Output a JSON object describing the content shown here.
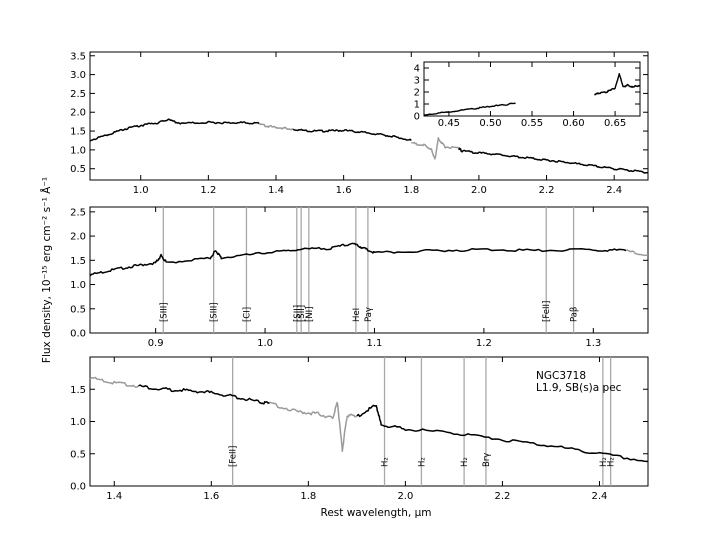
{
  "figure": {
    "ylabel": "Flux density, 10⁻¹⁵ erg cm⁻² s⁻¹ Å⁻¹",
    "xlabel": "Rest wavelength, μm",
    "annotation": {
      "object": "NGC3718",
      "classification": "L1.9,  SB(s)a pec"
    }
  },
  "chart_data": [
    {
      "type": "line",
      "panel": "top",
      "xlim": [
        0.85,
        2.5
      ],
      "ylim": [
        0.2,
        3.6
      ],
      "xticks": [
        "1.0",
        "1.2",
        "1.4",
        "1.6",
        "1.8",
        "2.0",
        "2.2",
        "2.4"
      ],
      "yticks": [
        "0.5",
        "1.0",
        "1.5",
        "2.0",
        "2.5",
        "3.0",
        "3.5"
      ],
      "colors": {
        "spectrum": "#000000",
        "telluric": "#9a9a9a"
      },
      "series": [
        {
          "style": "black",
          "segments": [
            {
              "x": [
                0.85,
                0.9,
                0.95,
                1.0,
                1.05,
                1.08,
                1.12,
                1.2,
                1.25,
                1.3,
                1.35
              ],
              "y": [
                1.25,
                1.4,
                1.55,
                1.65,
                1.72,
                1.8,
                1.7,
                1.73,
                1.72,
                1.72,
                1.7
              ]
            },
            {
              "x": [
                1.45,
                1.5,
                1.55,
                1.6,
                1.65,
                1.7,
                1.75,
                1.8
              ],
              "y": [
                1.55,
                1.5,
                1.5,
                1.52,
                1.47,
                1.42,
                1.35,
                1.25
              ]
            },
            {
              "x": [
                1.94,
                1.95,
                2.0,
                2.05,
                2.1,
                2.15,
                2.2,
                2.25,
                2.3,
                2.35,
                2.4,
                2.45,
                2.5
              ],
              "y": [
                1.05,
                0.97,
                0.92,
                0.88,
                0.83,
                0.78,
                0.73,
                0.68,
                0.62,
                0.56,
                0.5,
                0.45,
                0.4
              ]
            }
          ]
        },
        {
          "style": "grey",
          "segments": [
            {
              "x": [
                1.35,
                1.38,
                1.42,
                1.45
              ],
              "y": [
                1.68,
                1.62,
                1.58,
                1.55
              ]
            },
            {
              "x": [
                1.8,
                1.84,
                1.86,
                1.87,
                1.88,
                1.9,
                1.94
              ],
              "y": [
                1.18,
                1.12,
                1.0,
                0.75,
                1.3,
                1.08,
                1.05
              ]
            }
          ]
        }
      ],
      "inset": {
        "xlim": [
          0.42,
          0.68
        ],
        "ylim": [
          0,
          4.5
        ],
        "xticks": [
          "0.45",
          "0.50",
          "0.55",
          "0.60",
          "0.65"
        ],
        "yticks": [
          "0",
          "1",
          "2",
          "3",
          "4"
        ],
        "series": [
          {
            "x": [
              0.42,
              0.45,
              0.48,
              0.5,
              0.52,
              0.53
            ],
            "y": [
              0.1,
              0.35,
              0.6,
              0.8,
              0.95,
              1.1
            ]
          },
          {
            "x": [
              0.625,
              0.63,
              0.64,
              0.645,
              0.65,
              0.655,
              0.66,
              0.665,
              0.67,
              0.675,
              0.68
            ],
            "y": [
              1.8,
              1.9,
              2.0,
              2.2,
              2.3,
              3.5,
              2.4,
              2.6,
              2.4,
              2.5,
              2.5
            ]
          }
        ]
      }
    },
    {
      "type": "line",
      "panel": "middle",
      "xlim": [
        0.84,
        1.35
      ],
      "ylim": [
        0.0,
        2.6
      ],
      "xticks": [
        "0.9",
        "1.0",
        "1.1",
        "1.2",
        "1.3"
      ],
      "yticks": [
        "0.0",
        "0.5",
        "1.0",
        "1.5",
        "2.0",
        "2.5"
      ],
      "series": [
        {
          "style": "black",
          "x": [
            0.84,
            0.86,
            0.88,
            0.9,
            0.905,
            0.91,
            0.95,
            0.955,
            0.96,
            1.0,
            1.03,
            1.06,
            1.08,
            1.09,
            1.1,
            1.15,
            1.2,
            1.25,
            1.3,
            1.33
          ],
          "y": [
            1.2,
            1.3,
            1.38,
            1.45,
            1.6,
            1.45,
            1.55,
            1.7,
            1.55,
            1.65,
            1.72,
            1.75,
            1.85,
            1.75,
            1.65,
            1.7,
            1.72,
            1.7,
            1.72,
            1.7
          ]
        },
        {
          "style": "grey",
          "x": [
            1.33,
            1.35
          ],
          "y": [
            1.7,
            1.6
          ]
        }
      ],
      "lines": [
        {
          "x": 0.907,
          "label": "[SIII]"
        },
        {
          "x": 0.953,
          "label": "[SIII]"
        },
        {
          "x": 0.983,
          "label": "[CI]"
        },
        {
          "x": 1.029,
          "label": "[SII]"
        },
        {
          "x": 1.033,
          "label": "[SII]"
        },
        {
          "x": 1.04,
          "label": "[NI]"
        },
        {
          "x": 1.083,
          "label": "HeI"
        },
        {
          "x": 1.094,
          "label": "Paγ"
        },
        {
          "x": 1.257,
          "label": "[FeII]"
        },
        {
          "x": 1.282,
          "label": "Paβ"
        }
      ]
    },
    {
      "type": "line",
      "panel": "bottom",
      "xlim": [
        1.35,
        2.5
      ],
      "ylim": [
        0.0,
        2.0
      ],
      "xticks": [
        "1.4",
        "1.6",
        "1.8",
        "2.0",
        "2.2",
        "2.4"
      ],
      "yticks": [
        "0.0",
        "0.5",
        "1.0",
        "1.5"
      ],
      "series": [
        {
          "style": "grey",
          "x": [
            1.35,
            1.4,
            1.45
          ],
          "y": [
            1.68,
            1.6,
            1.55
          ]
        },
        {
          "style": "black",
          "x": [
            1.45,
            1.5,
            1.55,
            1.6,
            1.65,
            1.7,
            1.72
          ],
          "y": [
            1.55,
            1.5,
            1.48,
            1.45,
            1.38,
            1.3,
            1.28
          ]
        },
        {
          "style": "grey",
          "x": [
            1.72,
            1.78,
            1.82,
            1.85,
            1.86,
            1.87,
            1.88,
            1.9
          ],
          "y": [
            1.28,
            1.15,
            1.12,
            1.05,
            1.3,
            0.55,
            1.1,
            1.08
          ]
        },
        {
          "style": "black",
          "x": [
            1.9,
            1.94,
            1.95,
            2.0,
            2.1,
            2.2,
            2.3,
            2.4,
            2.5
          ],
          "y": [
            1.08,
            1.25,
            0.95,
            0.88,
            0.82,
            0.72,
            0.62,
            0.5,
            0.38
          ]
        }
      ],
      "lines": [
        {
          "x": 1.644,
          "label": "[FeII]"
        },
        {
          "x": 1.957,
          "label": "H₂"
        },
        {
          "x": 2.033,
          "label": "H₂"
        },
        {
          "x": 2.121,
          "label": "H₂"
        },
        {
          "x": 2.166,
          "label": "Brγ"
        },
        {
          "x": 2.407,
          "label": "H₂"
        },
        {
          "x": 2.423,
          "label": "H₂"
        }
      ]
    }
  ]
}
